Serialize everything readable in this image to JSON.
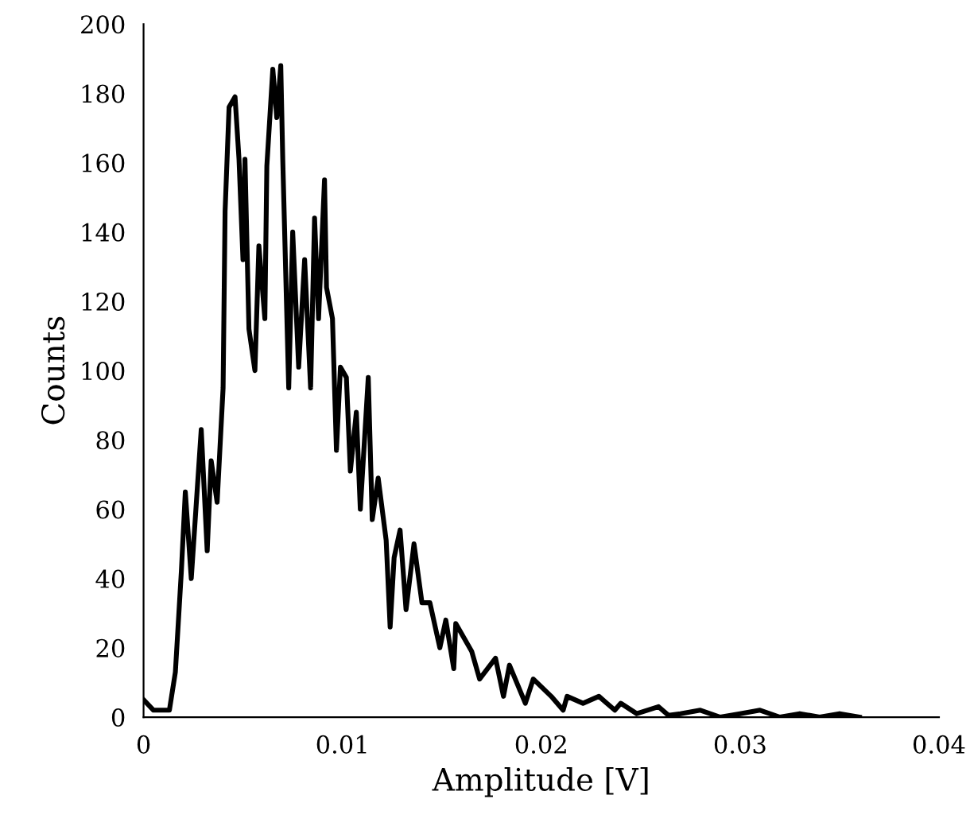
{
  "chart_data": {
    "type": "line",
    "xlabel": "Amplitude [V]",
    "ylabel": "Counts",
    "x": [
      0,
      0.0005,
      0.0013,
      0.0016,
      0.0019,
      0.0021,
      0.0024,
      0.0029,
      0.0032,
      0.0034,
      0.0037,
      0.004,
      0.0041,
      0.0043,
      0.0046,
      0.0048,
      0.005,
      0.0051,
      0.0053,
      0.0056,
      0.0058,
      0.0061,
      0.0062,
      0.0065,
      0.0067,
      0.0069,
      0.007,
      0.0073,
      0.0075,
      0.0078,
      0.0081,
      0.0084,
      0.0086,
      0.0088,
      0.0091,
      0.0092,
      0.0095,
      0.0097,
      0.0099,
      0.0102,
      0.0104,
      0.0107,
      0.0109,
      0.0113,
      0.0115,
      0.0118,
      0.0122,
      0.0124,
      0.0126,
      0.0129,
      0.0132,
      0.0136,
      0.014,
      0.0144,
      0.0149,
      0.0152,
      0.0156,
      0.0157,
      0.0165,
      0.0169,
      0.0177,
      0.0181,
      0.0184,
      0.0192,
      0.0196,
      0.0205,
      0.0211,
      0.0213,
      0.0221,
      0.0229,
      0.0237,
      0.024,
      0.0248,
      0.0259,
      0.0264,
      0.027,
      0.028,
      0.029,
      0.03,
      0.031,
      0.032,
      0.033,
      0.034,
      0.035,
      0.036
    ],
    "series": [
      {
        "color": "#000000",
        "values": [
          5,
          2,
          2,
          13,
          42,
          65,
          40,
          83,
          48,
          74,
          62,
          95,
          146,
          176,
          179,
          161,
          132,
          161,
          112,
          100,
          136,
          115,
          159,
          187,
          173,
          188,
          161,
          95,
          140,
          101,
          132,
          95,
          144,
          115,
          155,
          124,
          115,
          77,
          101,
          98,
          71,
          88,
          60,
          98,
          57,
          69,
          51,
          26,
          46,
          54,
          31,
          50,
          33,
          33,
          20,
          28,
          14,
          27,
          19,
          11,
          17,
          6,
          15,
          4,
          11,
          6,
          2,
          6,
          4,
          6,
          2,
          4,
          1,
          3,
          0.5,
          1,
          2,
          0,
          1,
          2,
          0,
          1,
          0,
          1,
          0
        ]
      }
    ],
    "xlim": [
      0,
      0.04
    ],
    "xticks": [
      0,
      0.01,
      0.02,
      0.03,
      0.04
    ],
    "ylim": [
      0,
      200
    ],
    "yticks": [
      0,
      20,
      40,
      60,
      80,
      100,
      120,
      140,
      160,
      180,
      200
    ],
    "grid": false,
    "legend": false,
    "marker": "none",
    "line_style": "solid"
  }
}
